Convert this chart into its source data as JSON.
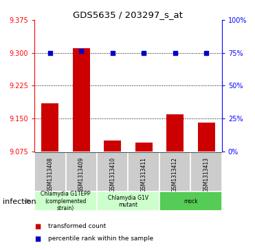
{
  "title": "GDS5635 / 203297_s_at",
  "samples": [
    "GSM1313408",
    "GSM1313409",
    "GSM1313410",
    "GSM1313411",
    "GSM1313412",
    "GSM1313413"
  ],
  "bar_values": [
    9.185,
    9.31,
    9.1,
    9.095,
    9.16,
    9.14
  ],
  "percentile_y": [
    9.3,
    9.305,
    9.3,
    9.3,
    9.3,
    9.3
  ],
  "ylim_left": [
    9.075,
    9.375
  ],
  "yticks_left": [
    9.075,
    9.15,
    9.225,
    9.3,
    9.375
  ],
  "ylim_right": [
    0,
    100
  ],
  "yticks_right": [
    0,
    25,
    50,
    75,
    100
  ],
  "bar_color": "#cc0000",
  "dot_color": "#0000cc",
  "bar_bottom": 9.075,
  "hlines": [
    9.15,
    9.225,
    9.3
  ],
  "groups": [
    {
      "label": "Chlamydia G1TEPP\n(complemented\nstrain)",
      "start": 0,
      "end": 2,
      "color": "#ccffcc"
    },
    {
      "label": "Chlamydia G1V\nmutant",
      "start": 2,
      "end": 4,
      "color": "#ccffcc"
    },
    {
      "label": "mock",
      "start": 4,
      "end": 6,
      "color": "#55cc55"
    }
  ],
  "group_factor_label": "infection",
  "legend_items": [
    {
      "color": "#cc0000",
      "label": "transformed count"
    },
    {
      "color": "#0000cc",
      "label": "percentile rank within the sample"
    }
  ],
  "bg_color": "#ffffff",
  "sample_box_color": "#cccccc",
  "bar_width": 0.55
}
